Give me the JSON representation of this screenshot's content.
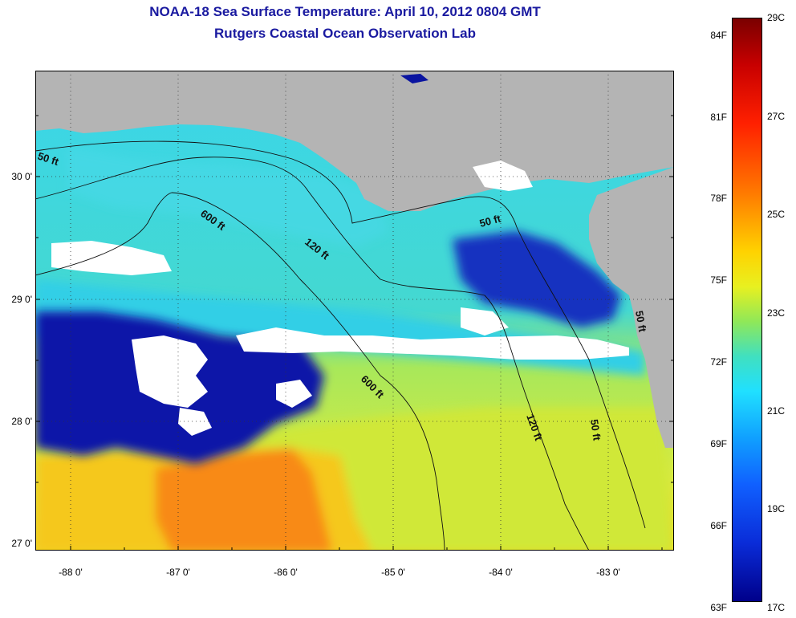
{
  "title": "NOAA-18 Sea Surface Temperature:  April 10, 2012 0804 GMT",
  "subtitle": "Rutgers Coastal Ocean Observation Lab",
  "map": {
    "lat_labels": [
      "30 0'",
      "29 0'",
      "28 0'",
      "27 0'"
    ],
    "lon_labels": [
      "-88 0'",
      "-87 0'",
      "-86 0'",
      "-85 0'",
      "-84 0'",
      "-83 0'"
    ],
    "contour_labels": [
      "50 ft",
      "600 ft",
      "120 ft",
      "50 ft",
      "600 ft",
      "120 ft",
      "50 ft",
      "50 ft"
    ],
    "colors": {
      "land": "#b4b4b4",
      "cloud": "#ffffff",
      "cold": "#0a14a0",
      "mid": "#38d8e8",
      "warm": "#ffe020",
      "hot": "#ff7a10"
    }
  },
  "colorbar": {
    "fahrenheit": [
      "84F",
      "81F",
      "78F",
      "75F",
      "72F",
      "69F",
      "66F",
      "63F"
    ],
    "celsius": [
      "29C",
      "27C",
      "25C",
      "23C",
      "21C",
      "19C",
      "17C"
    ]
  }
}
